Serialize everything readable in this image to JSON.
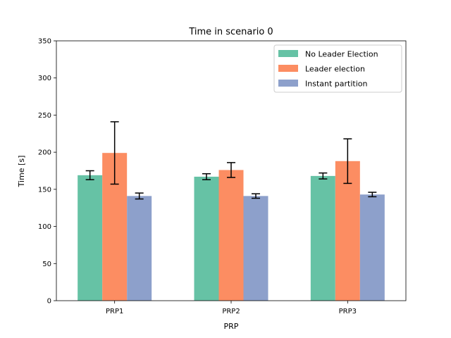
{
  "chart_data": {
    "type": "bar",
    "title": "Time in scenario 0",
    "xlabel": "PRP",
    "ylabel": "Time [s]",
    "ylim": [
      0,
      350
    ],
    "yticks": [
      0,
      50,
      100,
      150,
      200,
      250,
      300,
      350
    ],
    "categories": [
      "PRP1",
      "PRP2",
      "PRP3"
    ],
    "series": [
      {
        "name": "No Leader Election",
        "color": "#66c2a5",
        "values": [
          169,
          167,
          168
        ],
        "errors": [
          6,
          4,
          4
        ]
      },
      {
        "name": "Leader election",
        "color": "#fc8d62",
        "values": [
          199,
          176,
          188
        ],
        "errors": [
          42,
          10,
          30
        ]
      },
      {
        "name": "Instant partition",
        "color": "#8da0cb",
        "values": [
          141,
          141,
          143
        ],
        "errors": [
          4,
          3,
          3
        ]
      }
    ],
    "legend_position": "top-right",
    "grid": false
  }
}
